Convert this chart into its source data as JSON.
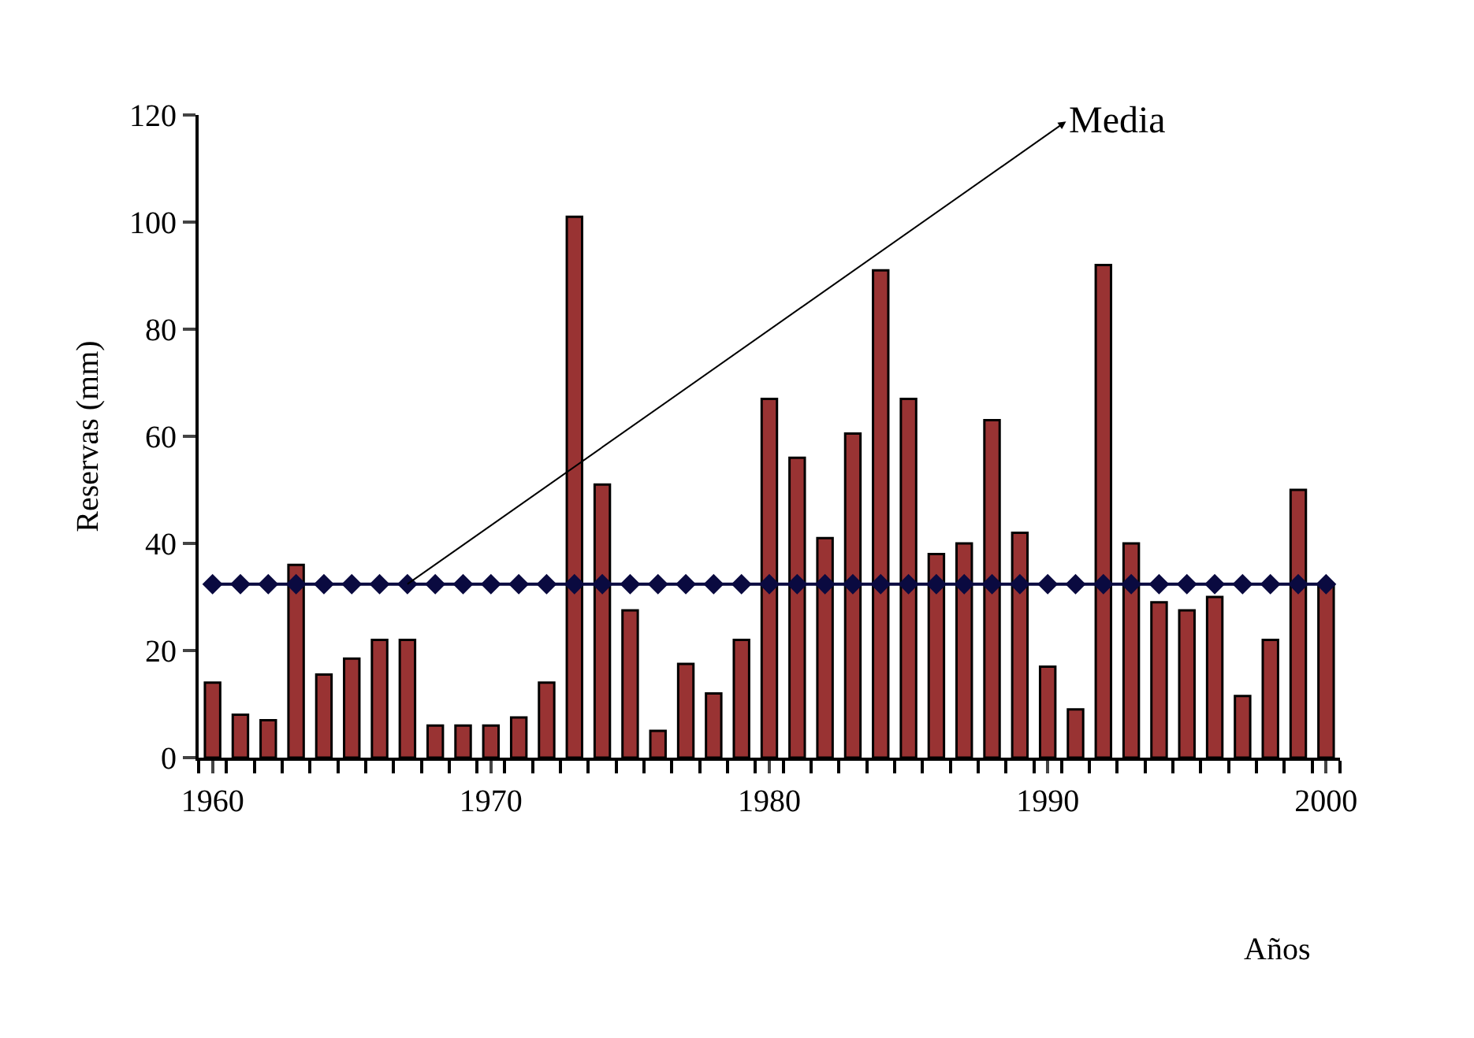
{
  "chart_data": {
    "type": "bar",
    "xlabel": "Años",
    "ylabel": "Reservas (mm)",
    "x": [
      1960,
      1961,
      1962,
      1963,
      1964,
      1965,
      1966,
      1967,
      1968,
      1969,
      1970,
      1971,
      1972,
      1973,
      1974,
      1975,
      1976,
      1977,
      1978,
      1979,
      1980,
      1981,
      1982,
      1983,
      1984,
      1985,
      1986,
      1987,
      1988,
      1989,
      1990,
      1991,
      1992,
      1993,
      1994,
      1995,
      1996,
      1997,
      1998,
      1999,
      2000
    ],
    "series": [
      {
        "color": "#993333",
        "values": [
          14,
          8,
          7,
          36,
          15.5,
          18.5,
          22,
          22,
          6,
          6,
          6,
          7.5,
          14,
          101,
          51,
          27.5,
          5,
          17.5,
          12,
          22,
          67,
          56,
          41,
          60.5,
          91,
          67,
          38,
          40,
          63,
          42,
          17,
          9,
          92,
          40,
          29,
          27.5,
          30,
          11.5,
          22,
          50,
          32
        ]
      },
      {
        "type": "line",
        "color": "#0a0a40",
        "marker": "diamond",
        "values": [
          32.4,
          32.4,
          32.4,
          32.4,
          32.4,
          32.4,
          32.4,
          32.4,
          32.4,
          32.4,
          32.4,
          32.4,
          32.4,
          32.4,
          32.4,
          32.4,
          32.4,
          32.4,
          32.4,
          32.4,
          32.4,
          32.4,
          32.4,
          32.4,
          32.4,
          32.4,
          32.4,
          32.4,
          32.4,
          32.4,
          32.4,
          32.4,
          32.4,
          32.4,
          32.4,
          32.4,
          32.4,
          32.4,
          32.4,
          32.4,
          32.4
        ]
      }
    ],
    "annotations": [
      {
        "text": "Media",
        "x": 1967,
        "y": 32.4
      }
    ],
    "xlim": [
      1959.5,
      2000.5
    ],
    "xticks": [
      1960,
      1970,
      1980,
      1990,
      2000
    ],
    "ylim": [
      0,
      120
    ],
    "yticks": [
      0,
      20,
      40,
      60,
      80,
      100,
      120
    ],
    "legend": false
  }
}
